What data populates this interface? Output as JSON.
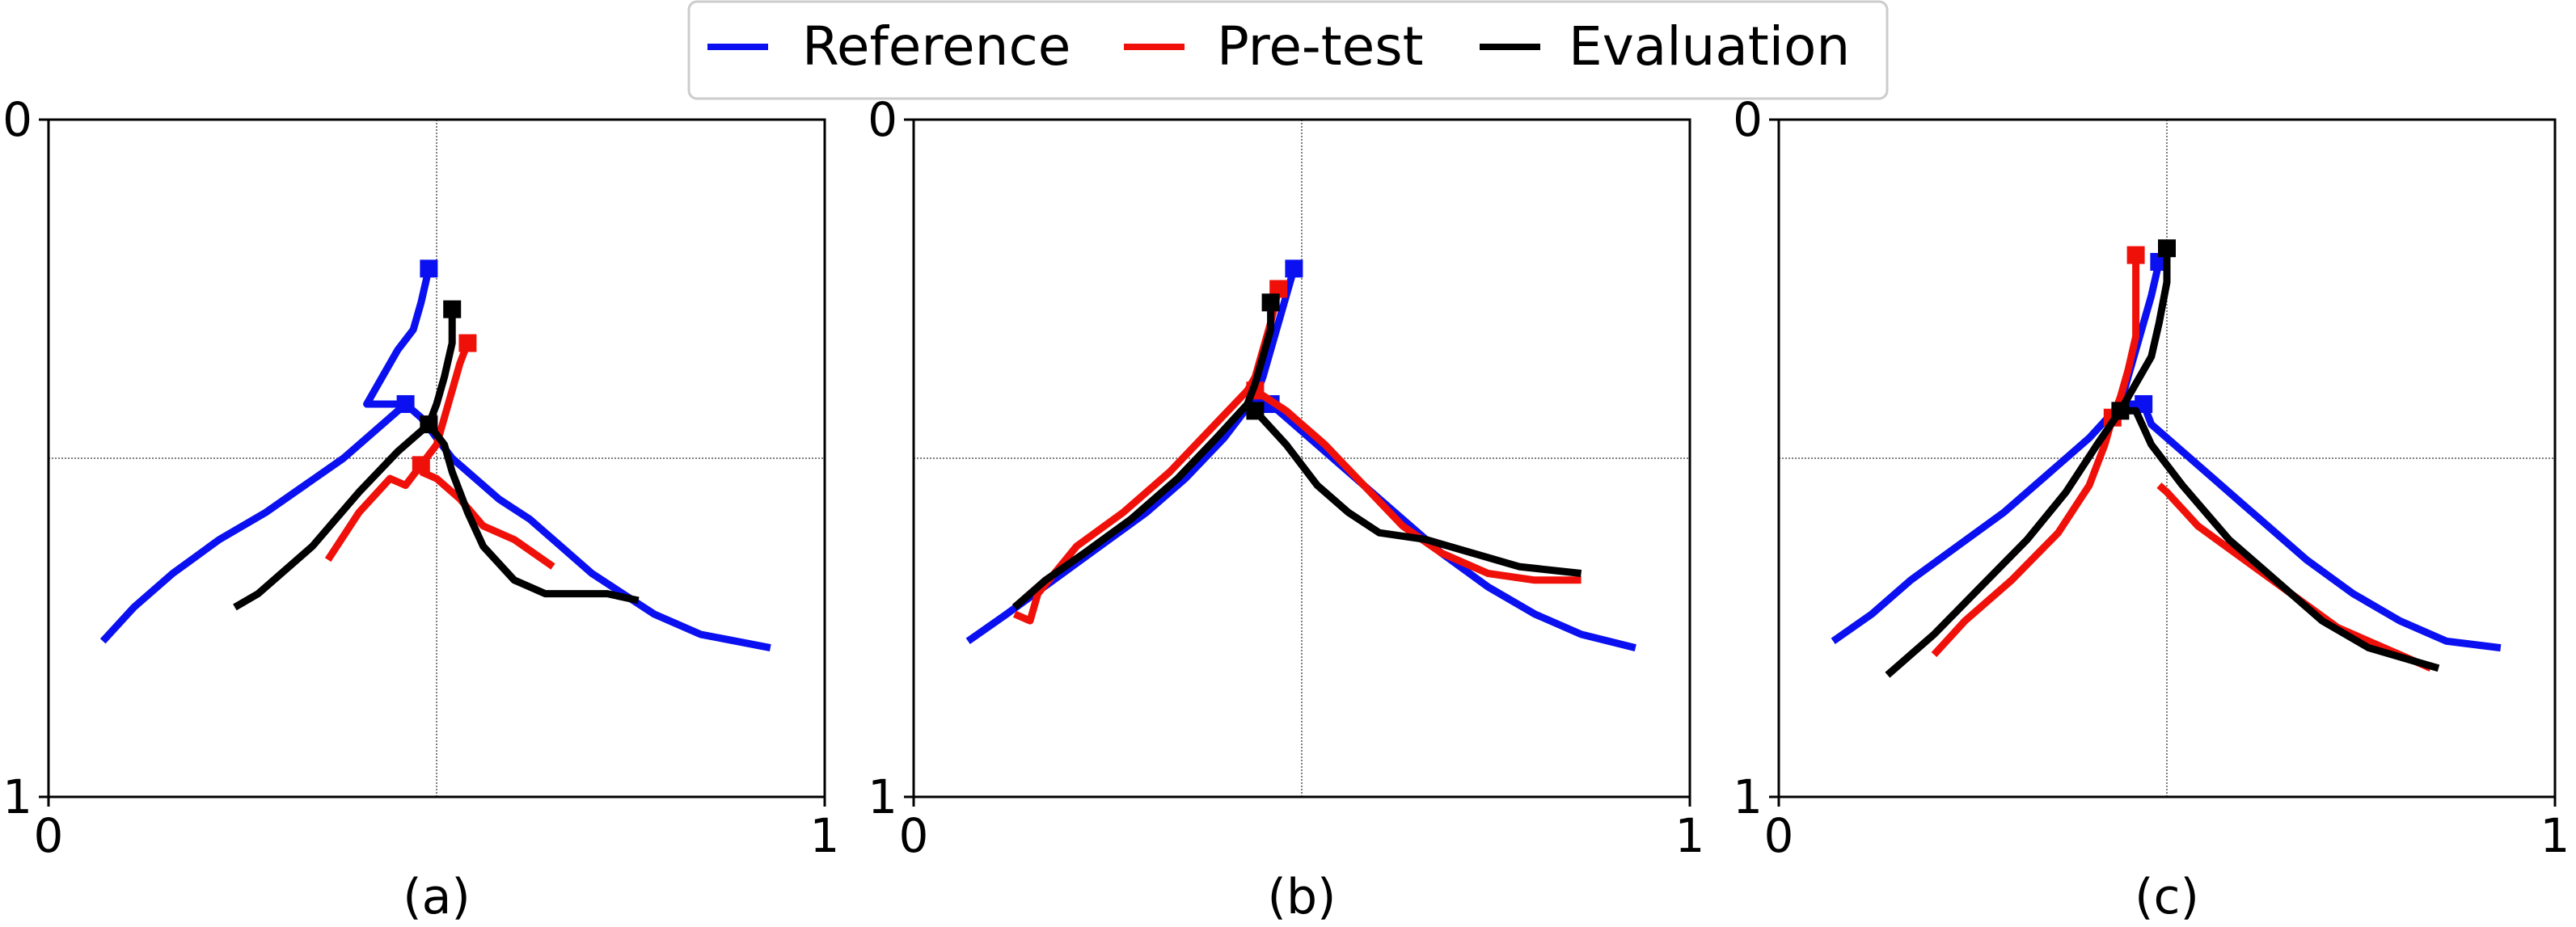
{
  "legend": [
    {
      "label": "Reference",
      "color": "#0a10f0"
    },
    {
      "label": "Pre-test",
      "color": "#f0100a"
    },
    {
      "label": "Evaluation",
      "color": "#000000"
    }
  ],
  "chart_data": [
    {
      "type": "line",
      "caption": "(a)",
      "xlim": [
        0,
        1
      ],
      "ylim": [
        0,
        1
      ],
      "y_inverted": true,
      "xticks": [
        "0",
        "1"
      ],
      "yticks": [
        "0",
        "1"
      ],
      "crosshair": {
        "x": 0.5,
        "y": 0.5
      },
      "series": [
        {
          "name": "Reference",
          "marker_indices": [
            0,
            6
          ],
          "x": [
            0.49,
            0.48,
            0.47,
            0.45,
            0.43,
            0.41,
            0.46,
            0.48,
            0.5,
            0.52,
            0.55,
            0.58,
            0.62,
            0.66,
            0.7,
            0.74,
            0.78,
            0.84,
            0.93
          ],
          "y": [
            0.22,
            0.27,
            0.31,
            0.34,
            0.38,
            0.42,
            0.42,
            0.44,
            0.47,
            0.5,
            0.53,
            0.56,
            0.59,
            0.63,
            0.67,
            0.7,
            0.73,
            0.76,
            0.78
          ]
        },
        {
          "name": "Reference",
          "x": [
            0.46,
            0.42,
            0.38,
            0.33,
            0.28,
            0.22,
            0.16,
            0.11,
            0.07
          ],
          "y": [
            0.42,
            0.46,
            0.5,
            0.54,
            0.58,
            0.62,
            0.67,
            0.72,
            0.77
          ]
        },
        {
          "name": "Pre-test",
          "marker_indices": [
            0,
            5
          ],
          "x": [
            0.54,
            0.53,
            0.52,
            0.51,
            0.5,
            0.48,
            0.46,
            0.44,
            0.4,
            0.36
          ],
          "y": [
            0.33,
            0.36,
            0.4,
            0.44,
            0.48,
            0.51,
            0.54,
            0.53,
            0.58,
            0.65
          ]
        },
        {
          "name": "Pre-test",
          "x": [
            0.48,
            0.5,
            0.53,
            0.56,
            0.6,
            0.65
          ],
          "y": [
            0.52,
            0.53,
            0.56,
            0.6,
            0.62,
            0.66
          ]
        },
        {
          "name": "Evaluation",
          "marker_indices": [
            0,
            5
          ],
          "x": [
            0.52,
            0.52,
            0.51,
            0.5,
            0.49,
            0.49,
            0.51,
            0.52,
            0.54,
            0.56,
            0.6,
            0.64,
            0.68,
            0.72,
            0.76
          ],
          "y": [
            0.28,
            0.33,
            0.38,
            0.42,
            0.45,
            0.45,
            0.48,
            0.52,
            0.58,
            0.63,
            0.68,
            0.7,
            0.7,
            0.7,
            0.71
          ]
        },
        {
          "name": "Evaluation",
          "x": [
            0.49,
            0.45,
            0.4,
            0.34,
            0.27,
            0.24
          ],
          "y": [
            0.45,
            0.49,
            0.55,
            0.63,
            0.7,
            0.72
          ]
        }
      ]
    },
    {
      "type": "line",
      "caption": "(b)",
      "xlim": [
        0,
        1
      ],
      "ylim": [
        0,
        1
      ],
      "y_inverted": true,
      "xticks": [
        "0",
        "1"
      ],
      "yticks": [
        "0",
        "1"
      ],
      "crosshair": {
        "x": 0.5,
        "y": 0.5
      },
      "series": [
        {
          "name": "Reference",
          "marker_indices": [
            0,
            6
          ],
          "x": [
            0.49,
            0.48,
            0.47,
            0.46,
            0.45,
            0.44,
            0.46,
            0.48,
            0.52,
            0.56,
            0.6,
            0.64,
            0.68,
            0.74,
            0.8,
            0.86,
            0.93
          ],
          "y": [
            0.22,
            0.26,
            0.3,
            0.34,
            0.38,
            0.41,
            0.42,
            0.44,
            0.48,
            0.52,
            0.56,
            0.6,
            0.64,
            0.69,
            0.73,
            0.76,
            0.78
          ]
        },
        {
          "name": "Reference",
          "x": [
            0.44,
            0.4,
            0.35,
            0.3,
            0.24,
            0.18,
            0.12,
            0.07
          ],
          "y": [
            0.41,
            0.47,
            0.53,
            0.58,
            0.63,
            0.68,
            0.73,
            0.77
          ]
        },
        {
          "name": "Pre-test",
          "marker_indices": [
            0,
            5
          ],
          "x": [
            0.47,
            0.46,
            0.45,
            0.44,
            0.43,
            0.44,
            0.48,
            0.53,
            0.58,
            0.63,
            0.68,
            0.74,
            0.8,
            0.86
          ],
          "y": [
            0.25,
            0.3,
            0.34,
            0.38,
            0.4,
            0.4,
            0.43,
            0.48,
            0.54,
            0.6,
            0.64,
            0.67,
            0.68,
            0.68
          ]
        },
        {
          "name": "Pre-test",
          "x": [
            0.43,
            0.38,
            0.33,
            0.27,
            0.21,
            0.16,
            0.15,
            0.13
          ],
          "y": [
            0.4,
            0.46,
            0.52,
            0.58,
            0.63,
            0.7,
            0.74,
            0.73
          ]
        },
        {
          "name": "Evaluation",
          "marker_indices": [
            0,
            6
          ],
          "x": [
            0.46,
            0.46,
            0.45,
            0.44,
            0.43,
            0.44,
            0.44,
            0.48,
            0.52,
            0.56,
            0.6,
            0.66,
            0.72,
            0.78,
            0.86
          ],
          "y": [
            0.27,
            0.31,
            0.35,
            0.39,
            0.42,
            0.43,
            0.43,
            0.48,
            0.54,
            0.58,
            0.61,
            0.62,
            0.64,
            0.66,
            0.67
          ]
        },
        {
          "name": "Evaluation",
          "x": [
            0.43,
            0.39,
            0.34,
            0.28,
            0.22,
            0.17,
            0.14,
            0.13
          ],
          "y": [
            0.42,
            0.47,
            0.53,
            0.59,
            0.64,
            0.68,
            0.71,
            0.72
          ]
        }
      ]
    },
    {
      "type": "line",
      "caption": "(c)",
      "xlim": [
        0,
        1
      ],
      "ylim": [
        0,
        1
      ],
      "y_inverted": true,
      "xticks": [
        "0",
        "1"
      ],
      "yticks": [
        "0",
        "1"
      ],
      "crosshair": {
        "x": 0.5,
        "y": 0.5
      },
      "series": [
        {
          "name": "Reference",
          "marker_indices": [
            0,
            6
          ],
          "x": [
            0.49,
            0.48,
            0.47,
            0.46,
            0.45,
            0.44,
            0.47,
            0.48,
            0.52,
            0.56,
            0.6,
            0.64,
            0.68,
            0.74,
            0.8,
            0.86,
            0.93
          ],
          "y": [
            0.21,
            0.26,
            0.3,
            0.34,
            0.38,
            0.42,
            0.42,
            0.45,
            0.49,
            0.53,
            0.57,
            0.61,
            0.65,
            0.7,
            0.74,
            0.77,
            0.78
          ]
        },
        {
          "name": "Reference",
          "x": [
            0.44,
            0.4,
            0.35,
            0.29,
            0.23,
            0.17,
            0.12,
            0.07
          ],
          "y": [
            0.42,
            0.47,
            0.52,
            0.58,
            0.63,
            0.68,
            0.73,
            0.77
          ]
        },
        {
          "name": "Pre-test",
          "marker_indices": [
            0,
            5
          ],
          "x": [
            0.46,
            0.46,
            0.46,
            0.45,
            0.44,
            0.43,
            0.42,
            0.4,
            0.36,
            0.3,
            0.24,
            0.2
          ],
          "y": [
            0.2,
            0.26,
            0.32,
            0.37,
            0.41,
            0.44,
            0.48,
            0.54,
            0.61,
            0.68,
            0.74,
            0.79
          ]
        },
        {
          "name": "Pre-test",
          "x": [
            0.49,
            0.5,
            0.54,
            0.6,
            0.66,
            0.72,
            0.8,
            0.84
          ],
          "y": [
            0.54,
            0.55,
            0.6,
            0.65,
            0.7,
            0.75,
            0.79,
            0.81
          ]
        },
        {
          "name": "Evaluation",
          "marker_indices": [
            0,
            5
          ],
          "x": [
            0.5,
            0.5,
            0.49,
            0.48,
            0.46,
            0.44,
            0.46,
            0.48,
            0.52,
            0.58,
            0.64,
            0.7,
            0.76,
            0.82,
            0.85
          ],
          "y": [
            0.19,
            0.24,
            0.3,
            0.35,
            0.39,
            0.43,
            0.43,
            0.48,
            0.54,
            0.62,
            0.68,
            0.74,
            0.78,
            0.8,
            0.81
          ]
        },
        {
          "name": "Evaluation",
          "x": [
            0.44,
            0.41,
            0.37,
            0.32,
            0.26,
            0.2,
            0.14
          ],
          "y": [
            0.43,
            0.48,
            0.55,
            0.62,
            0.69,
            0.76,
            0.82
          ]
        }
      ]
    }
  ]
}
